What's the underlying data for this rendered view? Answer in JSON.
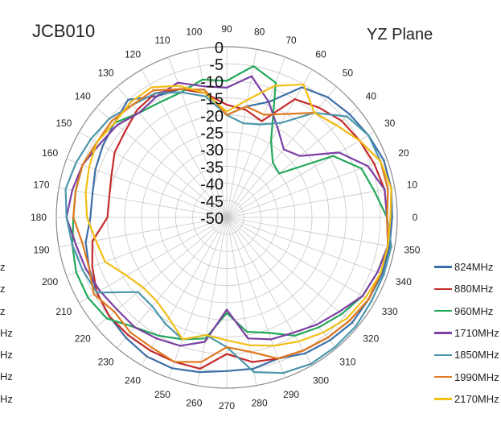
{
  "title_left": "JCB010",
  "title_right": "YZ  Plane",
  "cut_legend_fragments": [
    "z",
    "z",
    "z",
    "Hz",
    "Hz",
    "Hz",
    "Hz"
  ],
  "chart_data": {
    "type": "radar",
    "angles_deg": [
      0,
      10,
      20,
      30,
      40,
      50,
      60,
      70,
      80,
      90,
      100,
      110,
      120,
      130,
      140,
      150,
      160,
      170,
      180,
      190,
      200,
      210,
      220,
      230,
      240,
      250,
      260,
      270,
      280,
      290,
      300,
      310,
      320,
      330,
      340,
      350
    ],
    "angle_labels": [
      "0",
      "10",
      "20",
      "30",
      "40",
      "50",
      "60",
      "70",
      "80",
      "90",
      "100",
      "110",
      "120",
      "130",
      "140",
      "150",
      "160",
      "170",
      "180",
      "190",
      "200",
      "210",
      "220",
      "230",
      "240",
      "250",
      "260",
      "270",
      "280",
      "290",
      "300",
      "310",
      "320",
      "330",
      "340",
      "350"
    ],
    "radial_ticks": [
      "0",
      "-5",
      "-10",
      "-15",
      "-20",
      "-25",
      "-30",
      "-35",
      "-40",
      "-45",
      "-50"
    ],
    "rlim": [
      -50,
      0
    ],
    "direction": "clockwise",
    "zero_at": "east",
    "series": [
      {
        "name": "824MHz",
        "color": "#3c6fa8",
        "values": [
          -1.5,
          -1,
          -1,
          -2,
          -3,
          -4,
          -6,
          -14,
          -17,
          -20,
          -12,
          -10,
          -9,
          -5,
          -7,
          -8,
          -9,
          -10,
          -10,
          -8,
          -7,
          -6,
          -5,
          -4,
          -3,
          -3,
          -4,
          -5,
          -5,
          -6,
          -4,
          -3,
          -2,
          -2,
          -1.5,
          -1.5
        ]
      },
      {
        "name": "880MHz",
        "color": "#c42b2b",
        "values": [
          -3,
          -3,
          -4,
          -5,
          -6,
          -8,
          -10,
          -20,
          -18,
          -17,
          -13,
          -10,
          -8,
          -9,
          -11,
          -12,
          -14,
          -15,
          -15,
          -10,
          -8,
          -6,
          -5,
          -5,
          -5,
          -5,
          -5,
          -10,
          -7,
          -6,
          -5,
          -4,
          -3,
          -2,
          -2,
          -2
        ]
      },
      {
        "name": "960MHz",
        "color": "#23a85a",
        "values": [
          -3,
          -6,
          -8,
          -14,
          -30,
          -29,
          -24,
          -8,
          -5,
          -10,
          -9,
          -11,
          -11,
          -10,
          -7,
          -6,
          -5,
          -5,
          -5,
          -4,
          -3,
          -3,
          -4,
          -8,
          -10,
          -12,
          -14,
          -22,
          -16,
          -14,
          -10,
          -8,
          -6,
          -4,
          -3,
          -2
        ]
      },
      {
        "name": "1710MHz",
        "color": "#7b3fa3",
        "values": [
          -3,
          -3,
          -6,
          -12,
          -22,
          -24,
          -20,
          -14,
          -8,
          -12,
          -11,
          -8,
          -9,
          -10,
          -8,
          -7,
          -5,
          -4,
          -3,
          -5,
          -6,
          -7,
          -8,
          -8,
          -9,
          -10,
          -13,
          -23,
          -14,
          -12,
          -11,
          -9,
          -7,
          -4,
          -3,
          -2
        ]
      },
      {
        "name": "1850MHz",
        "color": "#4c97ad",
        "values": [
          -3,
          -2,
          -2,
          -2,
          -4,
          -10,
          -18,
          -21,
          -22,
          -20,
          -14,
          -11,
          -8,
          -7,
          -5,
          -4,
          -3,
          -2,
          -3,
          -4,
          -5,
          -6,
          -16,
          -16,
          -14,
          -12,
          -15,
          -12,
          -4,
          -1.5,
          -0.5,
          -0.5,
          -0.5,
          -1,
          -1,
          -1
        ]
      },
      {
        "name": "1990MHz",
        "color": "#e07a20",
        "values": [
          -3,
          -2,
          -2,
          -5,
          -8,
          -10,
          -15,
          -18,
          -17,
          -20,
          -12,
          -10,
          -7,
          -7,
          -6,
          -6,
          -5,
          -5,
          -5,
          -7,
          -7,
          -5,
          -7,
          -6,
          -6,
          -5,
          -7,
          -12,
          -10,
          -6,
          -5,
          -4,
          -3,
          -2,
          -2,
          -2
        ]
      },
      {
        "name": "2170MHz",
        "color": "#f2bf15",
        "values": [
          -2,
          -1,
          -2,
          -5,
          -8,
          -10,
          -5,
          -9,
          -15,
          -19,
          -13,
          -9,
          -6,
          -6,
          -7,
          -6,
          -7,
          -8,
          -9,
          -11,
          -12,
          -16,
          -18,
          -18,
          -16,
          -12,
          -15,
          -14,
          -12,
          -10,
          -8,
          -6,
          -4,
          -3,
          -2,
          -2
        ]
      }
    ]
  }
}
